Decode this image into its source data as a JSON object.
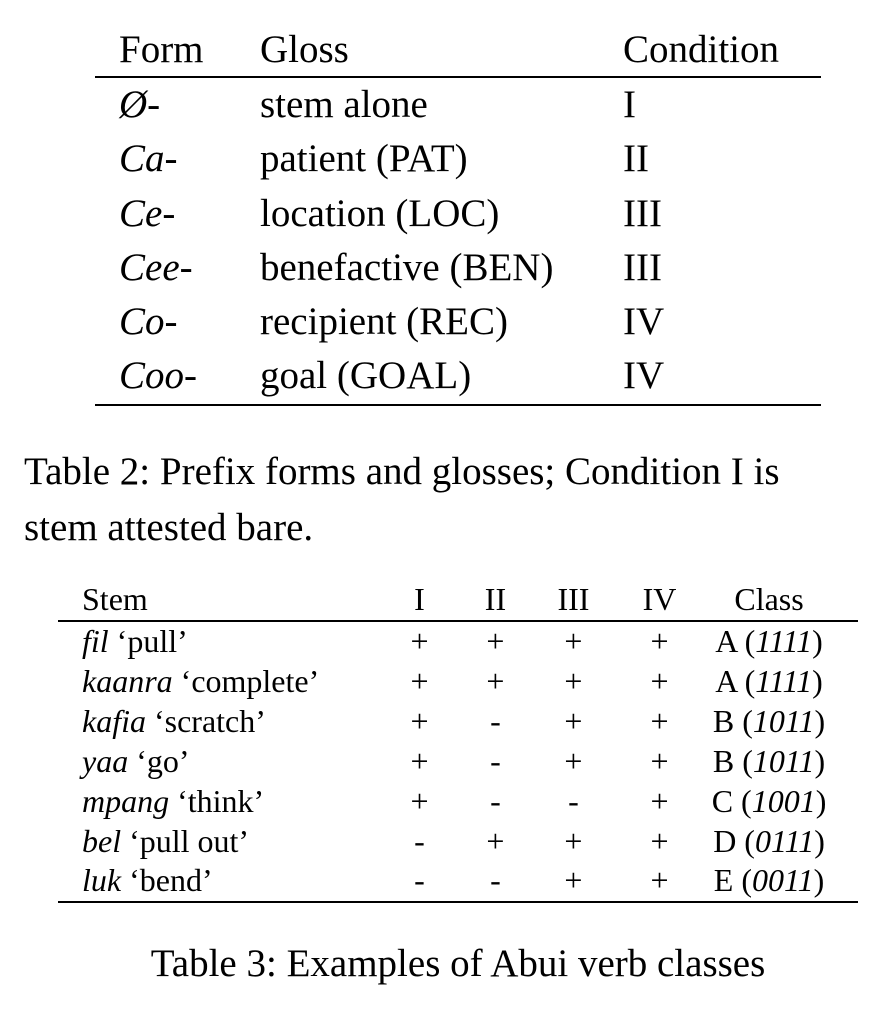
{
  "table2": {
    "headers": [
      "Form",
      "Gloss",
      "Condition"
    ],
    "rows": [
      {
        "form": "Ø-",
        "gloss": "stem alone",
        "abbr": "",
        "condition": "I"
      },
      {
        "form": "Ca-",
        "gloss": "patient (",
        "abbr": "PAT",
        "close": ")",
        "condition": "II"
      },
      {
        "form": "Ce-",
        "gloss": "location (",
        "abbr": "LOC",
        "close": ")",
        "condition": "III"
      },
      {
        "form": "Cee-",
        "gloss": "benefactive (",
        "abbr": "BEN",
        "close": ")",
        "condition": "III"
      },
      {
        "form": "Co-",
        "gloss": "recipient (",
        "abbr": "REC",
        "close": ")",
        "condition": "IV"
      },
      {
        "form": "Coo-",
        "gloss": "goal (",
        "abbr": "GOAL",
        "close": ")",
        "condition": "IV"
      }
    ],
    "caption_line1": "Table 2: Prefix forms and glosses; Condition I is",
    "caption_line2": "stem attested bare."
  },
  "table3": {
    "headers": [
      "Stem",
      "I",
      "II",
      "III",
      "IV",
      "Class"
    ],
    "rows": [
      {
        "stem": "fil",
        "gloss": "‘pull’",
        "v": [
          "+",
          "+",
          "+",
          "+"
        ],
        "cls": "A",
        "code": "1111"
      },
      {
        "stem": "kaanra",
        "gloss": "‘complete’",
        "v": [
          "+",
          "+",
          "+",
          "+"
        ],
        "cls": "A",
        "code": "1111"
      },
      {
        "stem": "kafia",
        "gloss": "‘scratch’",
        "v": [
          "+",
          "-",
          "+",
          "+"
        ],
        "cls": "B",
        "code": "1011"
      },
      {
        "stem": "yaa",
        "gloss": "‘go’",
        "v": [
          "+",
          "-",
          "+",
          "+"
        ],
        "cls": "B",
        "code": "1011"
      },
      {
        "stem": "mpang",
        "gloss": "‘think’",
        "v": [
          "+",
          "-",
          "-",
          "+"
        ],
        "cls": "C",
        "code": "1001"
      },
      {
        "stem": "bel",
        "gloss": "‘pull out’",
        "v": [
          "-",
          "+",
          "+",
          "+"
        ],
        "cls": "D",
        "code": "0111"
      },
      {
        "stem": "luk",
        "gloss": "‘bend’",
        "v": [
          "-",
          "-",
          "+",
          "+"
        ],
        "cls": "E",
        "code": "0011"
      }
    ],
    "caption": "Table 3: Examples of Abui verb classes"
  }
}
